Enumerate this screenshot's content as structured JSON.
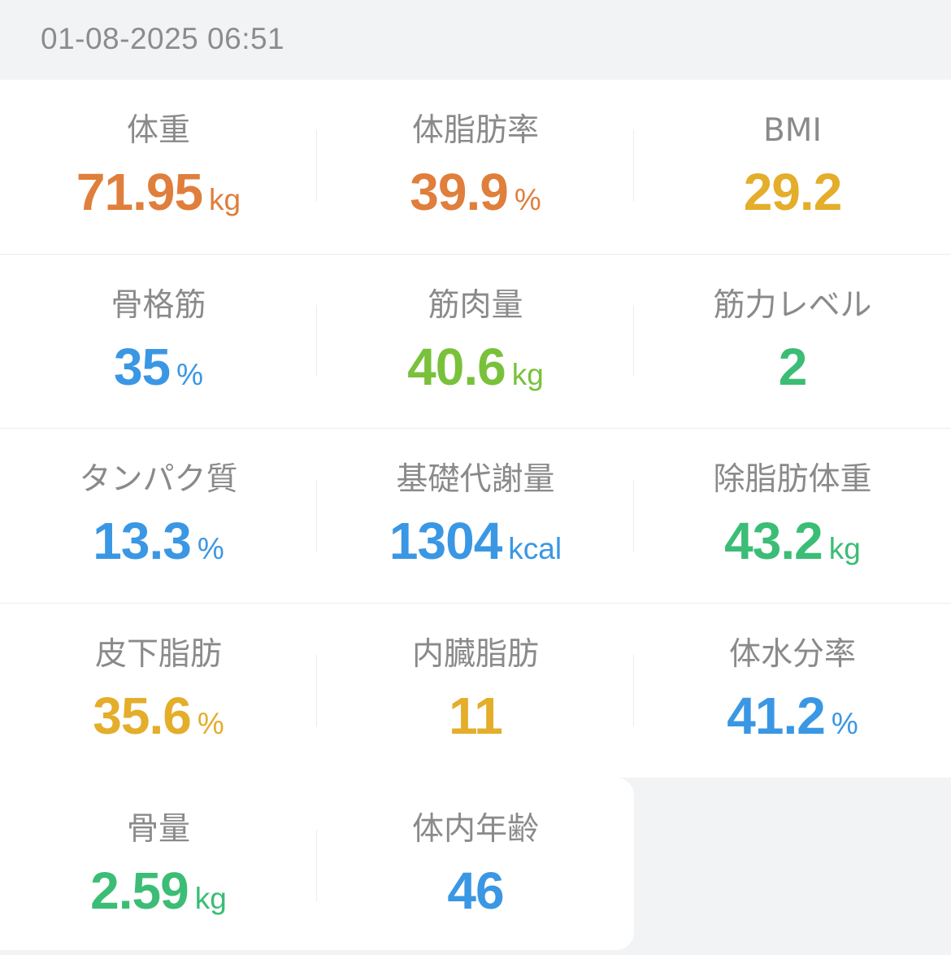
{
  "header": {
    "timestamp": "01-08-2025 06:51"
  },
  "colors": {
    "orange": "#e07e3c",
    "yellow": "#e4ad2a",
    "blue": "#3a97e4",
    "lime": "#79c13a",
    "green": "#3bbd75"
  },
  "metrics": [
    {
      "label": "体重",
      "value": "71.95",
      "unit": "kg",
      "color": "orange"
    },
    {
      "label": "体脂肪率",
      "value": "39.9",
      "unit": "%",
      "color": "orange"
    },
    {
      "label": "BMI",
      "value": "29.2",
      "unit": "",
      "color": "yellow"
    },
    {
      "label": "骨格筋",
      "value": "35",
      "unit": "%",
      "color": "blue"
    },
    {
      "label": "筋肉量",
      "value": "40.6",
      "unit": "kg",
      "color": "lime"
    },
    {
      "label": "筋力レベル",
      "value": "2",
      "unit": "",
      "color": "green"
    },
    {
      "label": "タンパク質",
      "value": "13.3",
      "unit": "%",
      "color": "blue"
    },
    {
      "label": "基礎代謝量",
      "value": "1304",
      "unit": "kcal",
      "color": "blue"
    },
    {
      "label": "除脂肪体重",
      "value": "43.2",
      "unit": "kg",
      "color": "green"
    },
    {
      "label": "皮下脂肪",
      "value": "35.6",
      "unit": "%",
      "color": "yellow"
    },
    {
      "label": "内臓脂肪",
      "value": "11",
      "unit": "",
      "color": "yellow"
    },
    {
      "label": "体水分率",
      "value": "41.2",
      "unit": "%",
      "color": "blue"
    },
    {
      "label": "骨量",
      "value": "2.59",
      "unit": "kg",
      "color": "green"
    },
    {
      "label": "体内年齢",
      "value": "46",
      "unit": "",
      "color": "blue"
    }
  ]
}
